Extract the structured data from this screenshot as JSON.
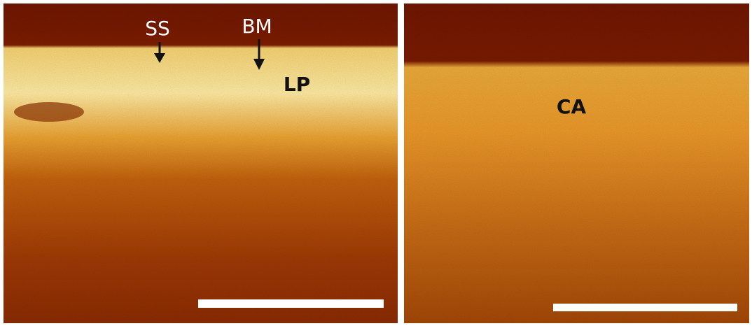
{
  "panels": [
    {
      "labels": [
        "SS",
        "BM",
        "LP"
      ]
    },
    {
      "labels": [
        "CA"
      ]
    }
  ]
}
